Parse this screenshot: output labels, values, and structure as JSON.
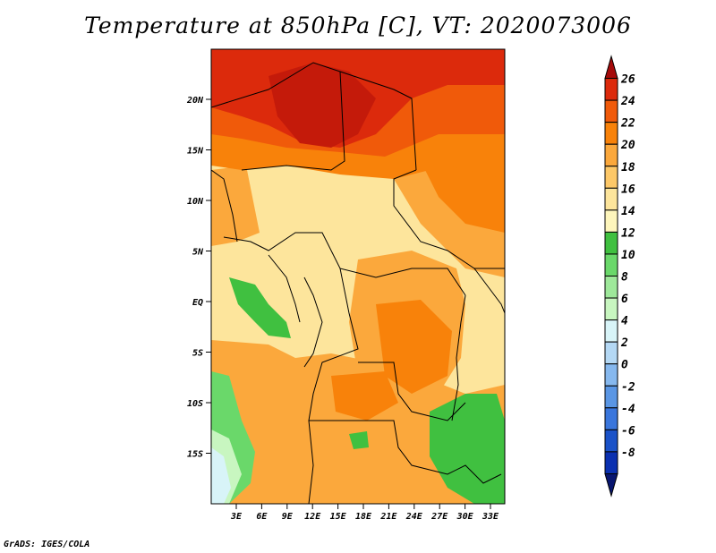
{
  "title": "Temperature at 850hPa [C], VT: 2020073006",
  "credit": "GrADS: IGES/COLA",
  "map": {
    "variable": "Temperature at 850hPa",
    "units": "C",
    "valid_time": "2020073006",
    "lat_ticks": [
      {
        "label": "20N",
        "lat": 20
      },
      {
        "label": "15N",
        "lat": 15
      },
      {
        "label": "10N",
        "lat": 10
      },
      {
        "label": "5N",
        "lat": 5
      },
      {
        "label": "EQ",
        "lat": 0
      },
      {
        "label": "5S",
        "lat": -5
      },
      {
        "label": "10S",
        "lat": -10
      },
      {
        "label": "15S",
        "lat": -15
      }
    ],
    "lon_ticks": [
      {
        "label": "3E",
        "lon": 3
      },
      {
        "label": "6E",
        "lon": 6
      },
      {
        "label": "9E",
        "lon": 9
      },
      {
        "label": "12E",
        "lon": 12
      },
      {
        "label": "15E",
        "lon": 15
      },
      {
        "label": "18E",
        "lon": 18
      },
      {
        "label": "21E",
        "lon": 21
      },
      {
        "label": "24E",
        "lon": 24
      },
      {
        "label": "27E",
        "lon": 27
      },
      {
        "label": "30E",
        "lon": 30
      },
      {
        "label": "33E",
        "lon": 33
      }
    ]
  },
  "colorbar": {
    "labels": [
      "26",
      "24",
      "22",
      "20",
      "18",
      "16",
      "14",
      "12",
      "10",
      "8",
      "6",
      "4",
      "2",
      "0",
      "-2",
      "-4",
      "-6",
      "-8"
    ],
    "colors": [
      "#a50a0a",
      "#dc2a0c",
      "#f05a0a",
      "#f8820a",
      "#fba83c",
      "#fdc868",
      "#fde59c",
      "#fef6bc",
      "#40c040",
      "#6ad86a",
      "#9ee89a",
      "#c8f6c0",
      "#d8f4f8",
      "#b4d8f4",
      "#86b8ee",
      "#5a96e4",
      "#3a76dc",
      "#1a52c8",
      "#0a30b0",
      "#081670"
    ]
  }
}
